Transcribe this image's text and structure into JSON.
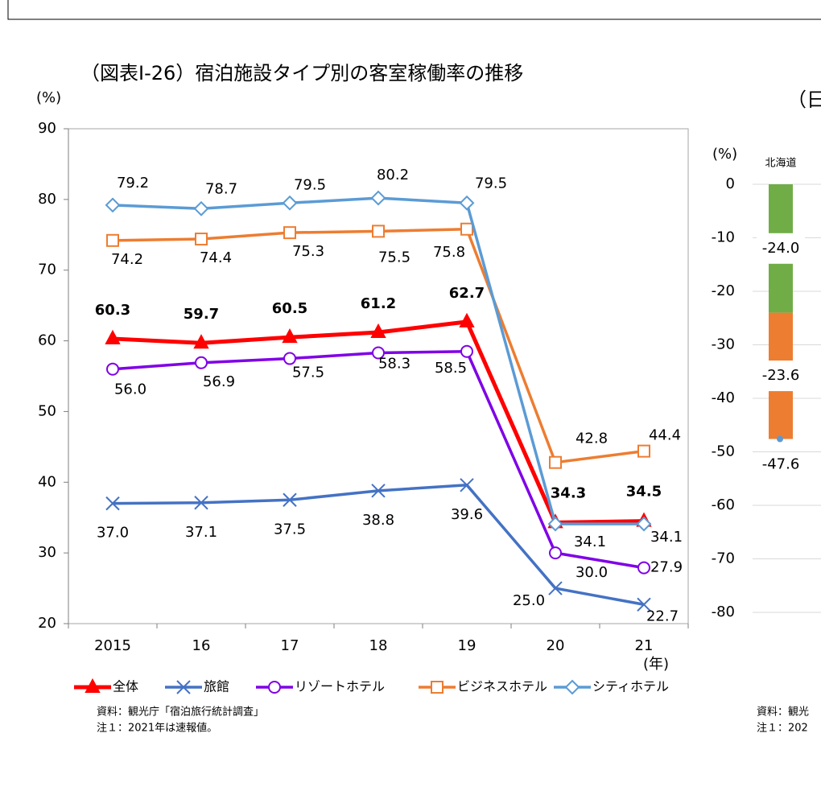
{
  "chart_data": [
    {
      "type": "line",
      "title": "（図表Ⅰ-26）宿泊施設タイプ別の客室稼働率の推移",
      "ylabel": "(%)",
      "xlabel": "(年)",
      "categories": [
        "2015",
        "16",
        "17",
        "18",
        "19",
        "20",
        "21"
      ],
      "ylim": [
        20,
        90
      ],
      "yticks": [
        20,
        30,
        40,
        50,
        60,
        70,
        80,
        90
      ],
      "grid": false,
      "series": [
        {
          "name": "全体",
          "color": "#ff0000",
          "marker": "triangle",
          "bold_labels": true,
          "values": [
            60.3,
            59.7,
            60.5,
            61.2,
            62.7,
            34.3,
            34.5
          ],
          "value_labels": [
            "60.3",
            "59.7",
            "60.5",
            "61.2",
            "62.7",
            "34.3",
            "34.5"
          ]
        },
        {
          "name": "旅館",
          "color": "#4472c4",
          "marker": "x",
          "values": [
            37.0,
            37.1,
            37.5,
            38.8,
            39.6,
            25.0,
            22.7
          ],
          "value_labels": [
            "37.0",
            "37.1",
            "37.5",
            "38.8",
            "39.6",
            "25.0",
            "22.7"
          ]
        },
        {
          "name": "リゾートホテル",
          "color": "#7f00e6",
          "marker": "circle",
          "values": [
            56.0,
            56.9,
            57.5,
            58.3,
            58.5,
            30.0,
            27.9
          ],
          "value_labels": [
            "56.0",
            "56.9",
            "57.5",
            "58.3",
            "58.5",
            "30.0",
            "27.9"
          ]
        },
        {
          "name": "ビジネスホテル",
          "color": "#ed7d31",
          "marker": "square",
          "values": [
            74.2,
            74.4,
            75.3,
            75.5,
            75.8,
            42.8,
            44.4
          ],
          "value_labels": [
            "74.2",
            "74.4",
            "75.3",
            "75.5",
            "75.8",
            "42.8",
            "44.4"
          ]
        },
        {
          "name": "シティホテル",
          "color": "#5b9bd5",
          "marker": "diamond",
          "values": [
            79.2,
            78.7,
            79.5,
            80.2,
            79.5,
            34.1,
            34.1
          ],
          "value_labels": [
            "79.2",
            "78.7",
            "79.5",
            "80.2",
            "79.5",
            "34.1",
            "34.1"
          ]
        }
      ],
      "notes": [
        "資料：観光庁「宿泊旅行統計調査」",
        "注１：2021年は速報値。"
      ]
    },
    {
      "type": "stacked-bar",
      "title": "（日",
      "ylabel": "(%)",
      "categories": [
        "北海道"
      ],
      "ylim": [
        -80,
        0
      ],
      "yticks": [
        0,
        -10,
        -20,
        -30,
        -40,
        -50,
        -60,
        -70,
        -80
      ],
      "grid": true,
      "series": [
        {
          "color": "#70ad47",
          "values": [
            -24.0
          ],
          "value_labels": [
            "-24.0"
          ]
        },
        {
          "color": "#ed7d31",
          "values": [
            -23.6
          ],
          "value_labels": [
            "-23.6"
          ]
        }
      ],
      "total": {
        "color": "#5b9bd5",
        "values": [
          -47.6
        ],
        "value_labels": [
          "-47.6"
        ]
      },
      "notes": [
        "資料：観光",
        "注１：202"
      ]
    }
  ]
}
